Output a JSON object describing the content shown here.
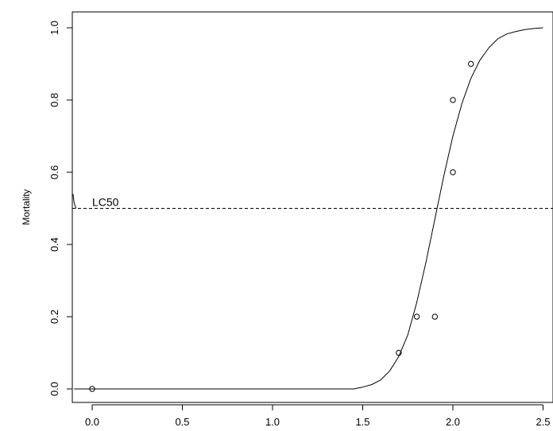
{
  "chart_data": {
    "type": "scatter",
    "title": "",
    "xlabel": "",
    "ylabel": "Mortality",
    "xlim": [
      -0.1,
      2.5
    ],
    "ylim": [
      0,
      1
    ],
    "x_ticks": [
      "0.0",
      "0.5",
      "1.0",
      "1.5",
      "2.0",
      "2.5"
    ],
    "y_ticks": [
      "0.0",
      "0.2",
      "0.4",
      "0.6",
      "0.8",
      "1.0"
    ],
    "grid": false,
    "legend": "none",
    "points": [
      {
        "x": 0.0,
        "y": 0.0
      },
      {
        "x": 1.7,
        "y": 0.1
      },
      {
        "x": 1.8,
        "y": 0.2
      },
      {
        "x": 1.9,
        "y": 0.2
      },
      {
        "x": 2.0,
        "y": 0.6
      },
      {
        "x": 2.0,
        "y": 0.8
      },
      {
        "x": 2.1,
        "y": 0.9
      }
    ],
    "fitted_curve": {
      "type": "logistic",
      "x": [
        -0.1,
        0.0,
        1.45,
        1.5,
        1.55,
        1.6,
        1.65,
        1.7,
        1.75,
        1.8,
        1.85,
        1.9,
        1.95,
        2.0,
        2.05,
        2.1,
        2.15,
        2.2,
        2.25,
        2.3,
        2.35,
        2.4,
        2.45,
        2.5
      ],
      "y": [
        0.0,
        0.0,
        0.0,
        0.005,
        0.012,
        0.025,
        0.05,
        0.09,
        0.15,
        0.24,
        0.35,
        0.47,
        0.59,
        0.7,
        0.79,
        0.86,
        0.91,
        0.945,
        0.97,
        0.983,
        0.99,
        0.995,
        0.998,
        1.0
      ]
    },
    "reference_line": {
      "y": 0.5,
      "style": "dashed"
    },
    "annotations": [
      {
        "text": "LC50"
      }
    ]
  }
}
